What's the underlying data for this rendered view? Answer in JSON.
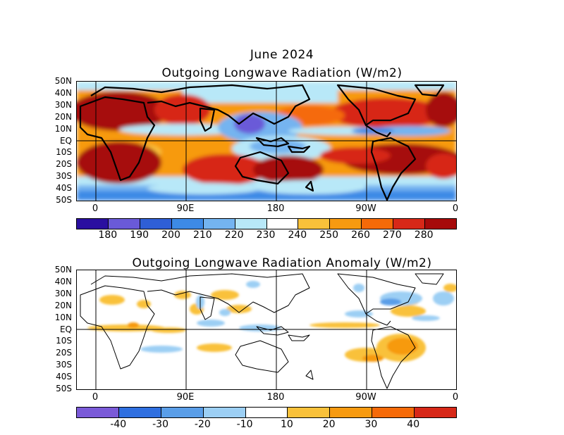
{
  "top": {
    "title_line1": "June 2024",
    "title_line2": "Outgoing Longwave Radiation (W/m2)",
    "lat_labels": [
      "50N",
      "40N",
      "30N",
      "20N",
      "10N",
      "EQ",
      "10S",
      "20S",
      "30S",
      "40S",
      "50S"
    ],
    "lon_labels": [
      "0",
      "90E",
      "180",
      "90W",
      "0"
    ],
    "colorbar": {
      "colors": [
        "#2a0fa0",
        "#6a5ad8",
        "#2f5fd6",
        "#3d8ae6",
        "#74b4f0",
        "#b8e8f8",
        "#ffffff",
        "#f9c13a",
        "#f79a10",
        "#f56a08",
        "#d72818",
        "#a60a0a"
      ],
      "labels": [
        "180",
        "190",
        "200",
        "210",
        "220",
        "230",
        "240",
        "250",
        "260",
        "270",
        "280"
      ]
    }
  },
  "bottom": {
    "title": "Outgoing Longwave Radiation Anomaly (W/m2)",
    "lat_labels": [
      "50N",
      "40N",
      "30N",
      "20N",
      "10N",
      "EQ",
      "10S",
      "20S",
      "30S",
      "40S",
      "50S"
    ],
    "lon_labels": [
      "0",
      "90E",
      "180",
      "90W",
      "0"
    ],
    "colorbar": {
      "colors": [
        "#7a5ad8",
        "#2f6fe0",
        "#5a9ee8",
        "#9ccff4",
        "#ffffff",
        "#f9c13a",
        "#f79a10",
        "#f56a08",
        "#d72818"
      ],
      "labels": [
        "-40",
        "-30",
        "-20",
        "-10",
        "10",
        "20",
        "30",
        "40"
      ]
    }
  }
}
